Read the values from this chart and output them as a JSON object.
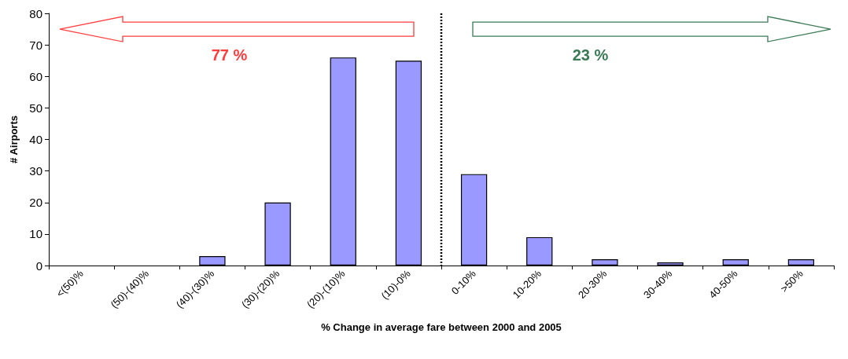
{
  "chart_data": {
    "type": "bar",
    "xlabel": "% Change in average fare between 2000 and 2005",
    "ylabel": "# Airports",
    "categories": [
      "<(50)%",
      "(50)-(40)%",
      "(40)-(30)%",
      "(30)-(20)%",
      "(20)-(10)%",
      "(10)-0%",
      "0-10%",
      "10-20%",
      "20-30%",
      "30-40%",
      "40-50%",
      ">50%"
    ],
    "values": [
      0,
      0,
      3,
      20,
      66,
      65,
      29,
      9,
      2,
      1,
      2,
      2
    ],
    "color": "#9999ff",
    "ylim": [
      0,
      80
    ],
    "yticks": [
      0,
      10,
      20,
      30,
      40,
      50,
      60,
      70,
      80
    ],
    "grid": false,
    "annotations": [
      "77 %",
      "23 %"
    ]
  }
}
